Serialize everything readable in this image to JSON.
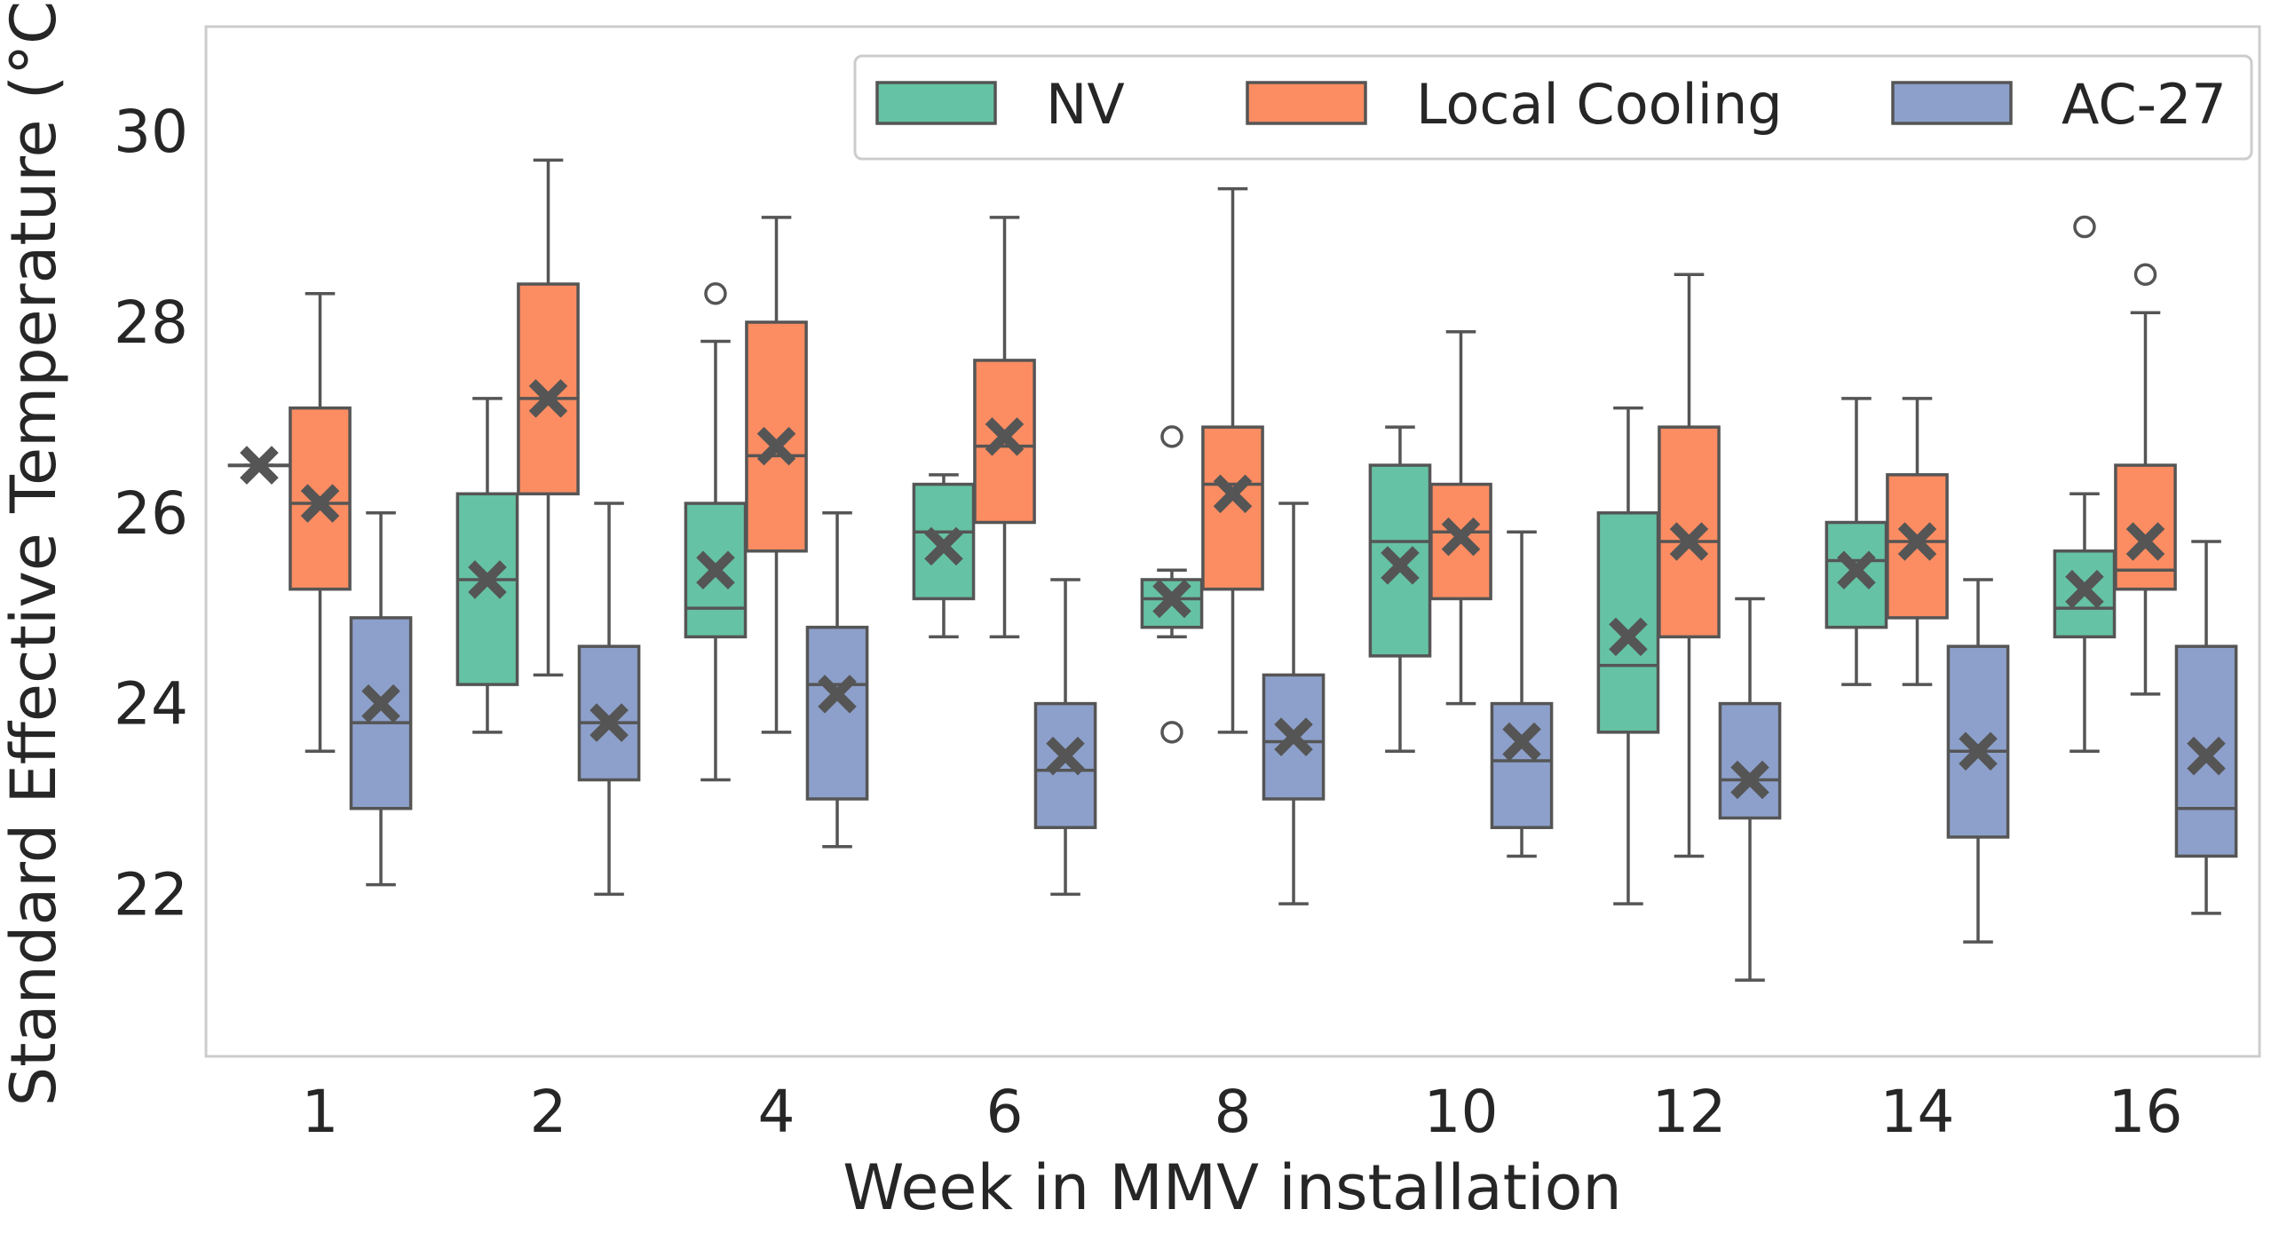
{
  "chart_data": {
    "type": "box",
    "xlabel": "Week in MMV installation",
    "ylabel": "Standard Effective Temperature (°C)",
    "categories": [
      "1",
      "2",
      "4",
      "6",
      "8",
      "10",
      "12",
      "14",
      "16"
    ],
    "ylim": [
      20.3,
      31.1
    ],
    "yticks": [
      22,
      24,
      26,
      28,
      30
    ],
    "yticklabels": [
      "22",
      "24",
      "26",
      "28",
      "30"
    ],
    "grid": false,
    "legend_position": "top-right",
    "series": [
      {
        "name": "NV",
        "color": "#66c2a5",
        "boxes": [
          {
            "min": 26.5,
            "q1": 26.5,
            "median": 26.5,
            "q3": 26.5,
            "max": 26.5,
            "mean": 26.5,
            "outliers": []
          },
          {
            "min": 23.7,
            "q1": 24.2,
            "median": 25.3,
            "q3": 26.2,
            "max": 27.2,
            "mean": 25.3,
            "outliers": []
          },
          {
            "min": 23.2,
            "q1": 24.7,
            "median": 25.0,
            "q3": 26.1,
            "max": 27.8,
            "mean": 25.4,
            "outliers": [
              28.3
            ]
          },
          {
            "min": 24.7,
            "q1": 25.1,
            "median": 25.8,
            "q3": 26.3,
            "max": 26.4,
            "mean": 25.65,
            "outliers": []
          },
          {
            "min": 24.7,
            "q1": 24.8,
            "median": 25.1,
            "q3": 25.3,
            "max": 25.4,
            "mean": 25.1,
            "outliers": [
              26.8,
              23.7
            ]
          },
          {
            "min": 23.5,
            "q1": 24.5,
            "median": 25.7,
            "q3": 26.5,
            "max": 26.9,
            "mean": 25.45,
            "outliers": []
          },
          {
            "min": 21.9,
            "q1": 23.7,
            "median": 24.4,
            "q3": 26.0,
            "max": 27.1,
            "mean": 24.7,
            "outliers": []
          },
          {
            "min": 24.2,
            "q1": 24.8,
            "median": 25.5,
            "q3": 25.9,
            "max": 27.2,
            "mean": 25.4,
            "outliers": []
          },
          {
            "min": 23.5,
            "q1": 24.7,
            "median": 25.0,
            "q3": 25.6,
            "max": 26.2,
            "mean": 25.2,
            "outliers": [
              29.0
            ]
          }
        ]
      },
      {
        "name": "Local Cooling",
        "color": "#fc8d62",
        "boxes": [
          {
            "min": 23.5,
            "q1": 25.2,
            "median": 26.1,
            "q3": 27.1,
            "max": 28.3,
            "mean": 26.1,
            "outliers": []
          },
          {
            "min": 24.3,
            "q1": 26.2,
            "median": 27.2,
            "q3": 28.4,
            "max": 29.7,
            "mean": 27.2,
            "outliers": []
          },
          {
            "min": 23.7,
            "q1": 25.6,
            "median": 26.6,
            "q3": 28.0,
            "max": 29.1,
            "mean": 26.7,
            "outliers": []
          },
          {
            "min": 24.7,
            "q1": 25.9,
            "median": 26.7,
            "q3": 27.6,
            "max": 29.1,
            "mean": 26.8,
            "outliers": []
          },
          {
            "min": 23.7,
            "q1": 25.2,
            "median": 26.3,
            "q3": 26.9,
            "max": 29.4,
            "mean": 26.2,
            "outliers": []
          },
          {
            "min": 24.0,
            "q1": 25.1,
            "median": 25.8,
            "q3": 26.3,
            "max": 27.9,
            "mean": 25.75,
            "outliers": []
          },
          {
            "min": 22.4,
            "q1": 24.7,
            "median": 25.7,
            "q3": 26.9,
            "max": 28.5,
            "mean": 25.7,
            "outliers": []
          },
          {
            "min": 24.2,
            "q1": 24.9,
            "median": 25.7,
            "q3": 26.4,
            "max": 27.2,
            "mean": 25.7,
            "outliers": []
          },
          {
            "min": 24.1,
            "q1": 25.2,
            "median": 25.4,
            "q3": 26.5,
            "max": 28.1,
            "mean": 25.7,
            "outliers": [
              28.5
            ]
          }
        ]
      },
      {
        "name": "AC-27",
        "color": "#8da0cb",
        "boxes": [
          {
            "min": 22.1,
            "q1": 22.9,
            "median": 23.8,
            "q3": 24.9,
            "max": 26.0,
            "mean": 24.0,
            "outliers": []
          },
          {
            "min": 22.0,
            "q1": 23.2,
            "median": 23.8,
            "q3": 24.6,
            "max": 26.1,
            "mean": 23.8,
            "outliers": []
          },
          {
            "min": 22.5,
            "q1": 23.0,
            "median": 24.2,
            "q3": 24.8,
            "max": 26.0,
            "mean": 24.1,
            "outliers": []
          },
          {
            "min": 22.0,
            "q1": 22.7,
            "median": 23.3,
            "q3": 24.0,
            "max": 25.3,
            "mean": 23.45,
            "outliers": []
          },
          {
            "min": 21.9,
            "q1": 23.0,
            "median": 23.6,
            "q3": 24.3,
            "max": 26.1,
            "mean": 23.65,
            "outliers": []
          },
          {
            "min": 22.4,
            "q1": 22.7,
            "median": 23.4,
            "q3": 24.0,
            "max": 25.8,
            "mean": 23.6,
            "outliers": []
          },
          {
            "min": 21.1,
            "q1": 22.8,
            "median": 23.2,
            "q3": 24.0,
            "max": 25.1,
            "mean": 23.2,
            "outliers": []
          },
          {
            "min": 21.5,
            "q1": 22.6,
            "median": 23.5,
            "q3": 24.6,
            "max": 25.3,
            "mean": 23.5,
            "outliers": []
          },
          {
            "min": 21.8,
            "q1": 22.4,
            "median": 22.9,
            "q3": 24.6,
            "max": 25.7,
            "mean": 23.45,
            "outliers": []
          }
        ]
      }
    ]
  }
}
